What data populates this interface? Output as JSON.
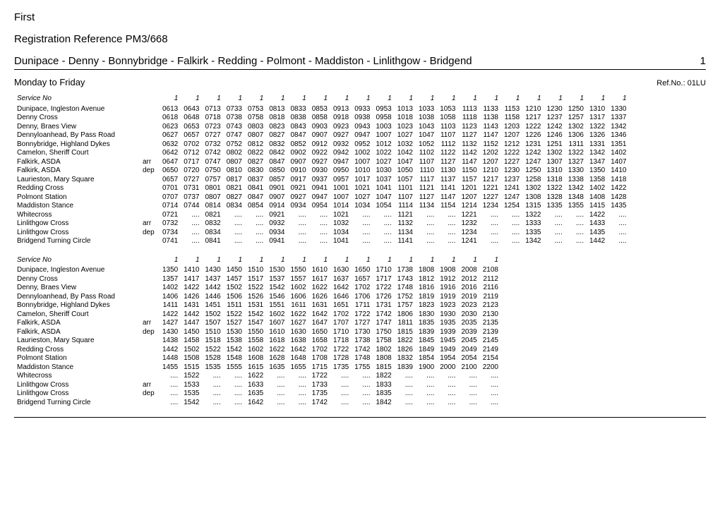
{
  "operator": "First",
  "registration": "Registration Reference PM3/668",
  "route": "Dunipace - Denny - Bonnybridge - Falkirk - Redding - Polmont - Maddiston - Linlithgow - Bridgend",
  "route_no": "1",
  "day_label": "Monday to Friday",
  "ref_no": "Ref.No.: 01LU",
  "service_label": "Service No",
  "blocks": [
    {
      "services": [
        "1",
        "1",
        "1",
        "1",
        "1",
        "1",
        "1",
        "1",
        "1",
        "1",
        "1",
        "1",
        "1",
        "1",
        "1",
        "1",
        "1",
        "1",
        "1",
        "1",
        "1",
        "1"
      ],
      "rows": [
        {
          "stop": "Dunipace, Ingleston Avenue",
          "ad": "",
          "t": [
            "0613",
            "0643",
            "0713",
            "0733",
            "0753",
            "0813",
            "0833",
            "0853",
            "0913",
            "0933",
            "0953",
            "1013",
            "1033",
            "1053",
            "1113",
            "1133",
            "1153",
            "1210",
            "1230",
            "1250",
            "1310",
            "1330"
          ]
        },
        {
          "stop": "Denny Cross",
          "ad": "",
          "t": [
            "0618",
            "0648",
            "0718",
            "0738",
            "0758",
            "0818",
            "0838",
            "0858",
            "0918",
            "0938",
            "0958",
            "1018",
            "1038",
            "1058",
            "1118",
            "1138",
            "1158",
            "1217",
            "1237",
            "1257",
            "1317",
            "1337"
          ]
        },
        {
          "stop": "Denny, Braes View",
          "ad": "",
          "t": [
            "0623",
            "0653",
            "0723",
            "0743",
            "0803",
            "0823",
            "0843",
            "0903",
            "0923",
            "0943",
            "1003",
            "1023",
            "1043",
            "1103",
            "1123",
            "1143",
            "1203",
            "1222",
            "1242",
            "1302",
            "1322",
            "1342"
          ]
        },
        {
          "stop": "Dennyloanhead, By Pass Road",
          "ad": "",
          "t": [
            "0627",
            "0657",
            "0727",
            "0747",
            "0807",
            "0827",
            "0847",
            "0907",
            "0927",
            "0947",
            "1007",
            "1027",
            "1047",
            "1107",
            "1127",
            "1147",
            "1207",
            "1226",
            "1246",
            "1306",
            "1326",
            "1346"
          ]
        },
        {
          "stop": "Bonnybridge, Highland Dykes",
          "ad": "",
          "t": [
            "0632",
            "0702",
            "0732",
            "0752",
            "0812",
            "0832",
            "0852",
            "0912",
            "0932",
            "0952",
            "1012",
            "1032",
            "1052",
            "1112",
            "1132",
            "1152",
            "1212",
            "1231",
            "1251",
            "1311",
            "1331",
            "1351"
          ]
        },
        {
          "stop": "Camelon, Sheriff Court",
          "ad": "",
          "t": [
            "0642",
            "0712",
            "0742",
            "0802",
            "0822",
            "0842",
            "0902",
            "0922",
            "0942",
            "1002",
            "1022",
            "1042",
            "1102",
            "1122",
            "1142",
            "1202",
            "1222",
            "1242",
            "1302",
            "1322",
            "1342",
            "1402"
          ]
        },
        {
          "stop": "Falkirk, ASDA",
          "ad": "arr",
          "t": [
            "0647",
            "0717",
            "0747",
            "0807",
            "0827",
            "0847",
            "0907",
            "0927",
            "0947",
            "1007",
            "1027",
            "1047",
            "1107",
            "1127",
            "1147",
            "1207",
            "1227",
            "1247",
            "1307",
            "1327",
            "1347",
            "1407"
          ]
        },
        {
          "stop": "Falkirk, ASDA",
          "ad": "dep",
          "t": [
            "0650",
            "0720",
            "0750",
            "0810",
            "0830",
            "0850",
            "0910",
            "0930",
            "0950",
            "1010",
            "1030",
            "1050",
            "1110",
            "1130",
            "1150",
            "1210",
            "1230",
            "1250",
            "1310",
            "1330",
            "1350",
            "1410"
          ]
        },
        {
          "stop": "Laurieston, Mary Square",
          "ad": "",
          "t": [
            "0657",
            "0727",
            "0757",
            "0817",
            "0837",
            "0857",
            "0917",
            "0937",
            "0957",
            "1017",
            "1037",
            "1057",
            "1117",
            "1137",
            "1157",
            "1217",
            "1237",
            "1258",
            "1318",
            "1338",
            "1358",
            "1418"
          ]
        },
        {
          "stop": "Redding Cross",
          "ad": "",
          "t": [
            "0701",
            "0731",
            "0801",
            "0821",
            "0841",
            "0901",
            "0921",
            "0941",
            "1001",
            "1021",
            "1041",
            "1101",
            "1121",
            "1141",
            "1201",
            "1221",
            "1241",
            "1302",
            "1322",
            "1342",
            "1402",
            "1422"
          ]
        },
        {
          "stop": "Polmont Station",
          "ad": "",
          "t": [
            "0707",
            "0737",
            "0807",
            "0827",
            "0847",
            "0907",
            "0927",
            "0947",
            "1007",
            "1027",
            "1047",
            "1107",
            "1127",
            "1147",
            "1207",
            "1227",
            "1247",
            "1308",
            "1328",
            "1348",
            "1408",
            "1428"
          ]
        },
        {
          "stop": "Maddiston Stance",
          "ad": "",
          "t": [
            "0714",
            "0744",
            "0814",
            "0834",
            "0854",
            "0914",
            "0934",
            "0954",
            "1014",
            "1034",
            "1054",
            "1114",
            "1134",
            "1154",
            "1214",
            "1234",
            "1254",
            "1315",
            "1335",
            "1355",
            "1415",
            "1435"
          ]
        },
        {
          "stop": "Whitecross",
          "ad": "",
          "t": [
            "0721",
            "....",
            "0821",
            "....",
            "....",
            "0921",
            "....",
            "....",
            "1021",
            "....",
            "....",
            "1121",
            "....",
            "....",
            "1221",
            "....",
            "....",
            "1322",
            "....",
            "....",
            "1422",
            "...."
          ]
        },
        {
          "stop": "Linlithgow Cross",
          "ad": "arr",
          "t": [
            "0732",
            "....",
            "0832",
            "....",
            "....",
            "0932",
            "....",
            "....",
            "1032",
            "....",
            "....",
            "1132",
            "....",
            "....",
            "1232",
            "....",
            "....",
            "1333",
            "....",
            "....",
            "1433",
            "...."
          ]
        },
        {
          "stop": "Linlithgow Cross",
          "ad": "dep",
          "t": [
            "0734",
            "....",
            "0834",
            "....",
            "....",
            "0934",
            "....",
            "....",
            "1034",
            "....",
            "....",
            "1134",
            "....",
            "....",
            "1234",
            "....",
            "....",
            "1335",
            "....",
            "....",
            "1435",
            "...."
          ]
        },
        {
          "stop": "Bridgend Turning Circle",
          "ad": "",
          "t": [
            "0741",
            "....",
            "0841",
            "....",
            "....",
            "0941",
            "....",
            "....",
            "1041",
            "....",
            "....",
            "1141",
            "....",
            "....",
            "1241",
            "....",
            "....",
            "1342",
            "....",
            "....",
            "1442",
            "...."
          ]
        }
      ]
    },
    {
      "services": [
        "1",
        "1",
        "1",
        "1",
        "1",
        "1",
        "1",
        "1",
        "1",
        "1",
        "1",
        "1",
        "1",
        "1",
        "1",
        "1"
      ],
      "rows": [
        {
          "stop": "Dunipace, Ingleston Avenue",
          "ad": "",
          "t": [
            "1350",
            "1410",
            "1430",
            "1450",
            "1510",
            "1530",
            "1550",
            "1610",
            "1630",
            "1650",
            "1710",
            "1738",
            "1808",
            "1908",
            "2008",
            "2108"
          ]
        },
        {
          "stop": "Denny Cross",
          "ad": "",
          "t": [
            "1357",
            "1417",
            "1437",
            "1457",
            "1517",
            "1537",
            "1557",
            "1617",
            "1637",
            "1657",
            "1717",
            "1743",
            "1812",
            "1912",
            "2012",
            "2112"
          ]
        },
        {
          "stop": "Denny, Braes View",
          "ad": "",
          "t": [
            "1402",
            "1422",
            "1442",
            "1502",
            "1522",
            "1542",
            "1602",
            "1622",
            "1642",
            "1702",
            "1722",
            "1748",
            "1816",
            "1916",
            "2016",
            "2116"
          ]
        },
        {
          "stop": "Dennyloanhead, By Pass Road",
          "ad": "",
          "t": [
            "1406",
            "1426",
            "1446",
            "1506",
            "1526",
            "1546",
            "1606",
            "1626",
            "1646",
            "1706",
            "1726",
            "1752",
            "1819",
            "1919",
            "2019",
            "2119"
          ]
        },
        {
          "stop": "Bonnybridge, Highland Dykes",
          "ad": "",
          "t": [
            "1411",
            "1431",
            "1451",
            "1511",
            "1531",
            "1551",
            "1611",
            "1631",
            "1651",
            "1711",
            "1731",
            "1757",
            "1823",
            "1923",
            "2023",
            "2123"
          ]
        },
        {
          "stop": "Camelon, Sheriff Court",
          "ad": "",
          "t": [
            "1422",
            "1442",
            "1502",
            "1522",
            "1542",
            "1602",
            "1622",
            "1642",
            "1702",
            "1722",
            "1742",
            "1806",
            "1830",
            "1930",
            "2030",
            "2130"
          ]
        },
        {
          "stop": "Falkirk, ASDA",
          "ad": "arr",
          "t": [
            "1427",
            "1447",
            "1507",
            "1527",
            "1547",
            "1607",
            "1627",
            "1647",
            "1707",
            "1727",
            "1747",
            "1811",
            "1835",
            "1935",
            "2035",
            "2135"
          ]
        },
        {
          "stop": "Falkirk, ASDA",
          "ad": "dep",
          "t": [
            "1430",
            "1450",
            "1510",
            "1530",
            "1550",
            "1610",
            "1630",
            "1650",
            "1710",
            "1730",
            "1750",
            "1815",
            "1839",
            "1939",
            "2039",
            "2139"
          ]
        },
        {
          "stop": "Laurieston, Mary Square",
          "ad": "",
          "t": [
            "1438",
            "1458",
            "1518",
            "1538",
            "1558",
            "1618",
            "1638",
            "1658",
            "1718",
            "1738",
            "1758",
            "1822",
            "1845",
            "1945",
            "2045",
            "2145"
          ]
        },
        {
          "stop": "Redding Cross",
          "ad": "",
          "t": [
            "1442",
            "1502",
            "1522",
            "1542",
            "1602",
            "1622",
            "1642",
            "1702",
            "1722",
            "1742",
            "1802",
            "1826",
            "1849",
            "1949",
            "2049",
            "2149"
          ]
        },
        {
          "stop": "Polmont Station",
          "ad": "",
          "t": [
            "1448",
            "1508",
            "1528",
            "1548",
            "1608",
            "1628",
            "1648",
            "1708",
            "1728",
            "1748",
            "1808",
            "1832",
            "1854",
            "1954",
            "2054",
            "2154"
          ]
        },
        {
          "stop": "Maddiston Stance",
          "ad": "",
          "t": [
            "1455",
            "1515",
            "1535",
            "1555",
            "1615",
            "1635",
            "1655",
            "1715",
            "1735",
            "1755",
            "1815",
            "1839",
            "1900",
            "2000",
            "2100",
            "2200"
          ]
        },
        {
          "stop": "Whitecross",
          "ad": "",
          "t": [
            "....",
            "1522",
            "....",
            "....",
            "1622",
            "....",
            "....",
            "1722",
            "....",
            "....",
            "1822",
            "....",
            "....",
            "....",
            "....",
            "...."
          ]
        },
        {
          "stop": "Linlithgow Cross",
          "ad": "arr",
          "t": [
            "....",
            "1533",
            "....",
            "....",
            "1633",
            "....",
            "....",
            "1733",
            "....",
            "....",
            "1833",
            "....",
            "....",
            "....",
            "....",
            "...."
          ]
        },
        {
          "stop": "Linlithgow Cross",
          "ad": "dep",
          "t": [
            "....",
            "1535",
            "....",
            "....",
            "1635",
            "....",
            "....",
            "1735",
            "....",
            "....",
            "1835",
            "....",
            "....",
            "....",
            "....",
            "...."
          ]
        },
        {
          "stop": "Bridgend Turning Circle",
          "ad": "",
          "t": [
            "....",
            "1542",
            "....",
            "....",
            "1642",
            "....",
            "....",
            "1742",
            "....",
            "....",
            "1842",
            "....",
            "....",
            "....",
            "....",
            "...."
          ]
        }
      ]
    }
  ]
}
